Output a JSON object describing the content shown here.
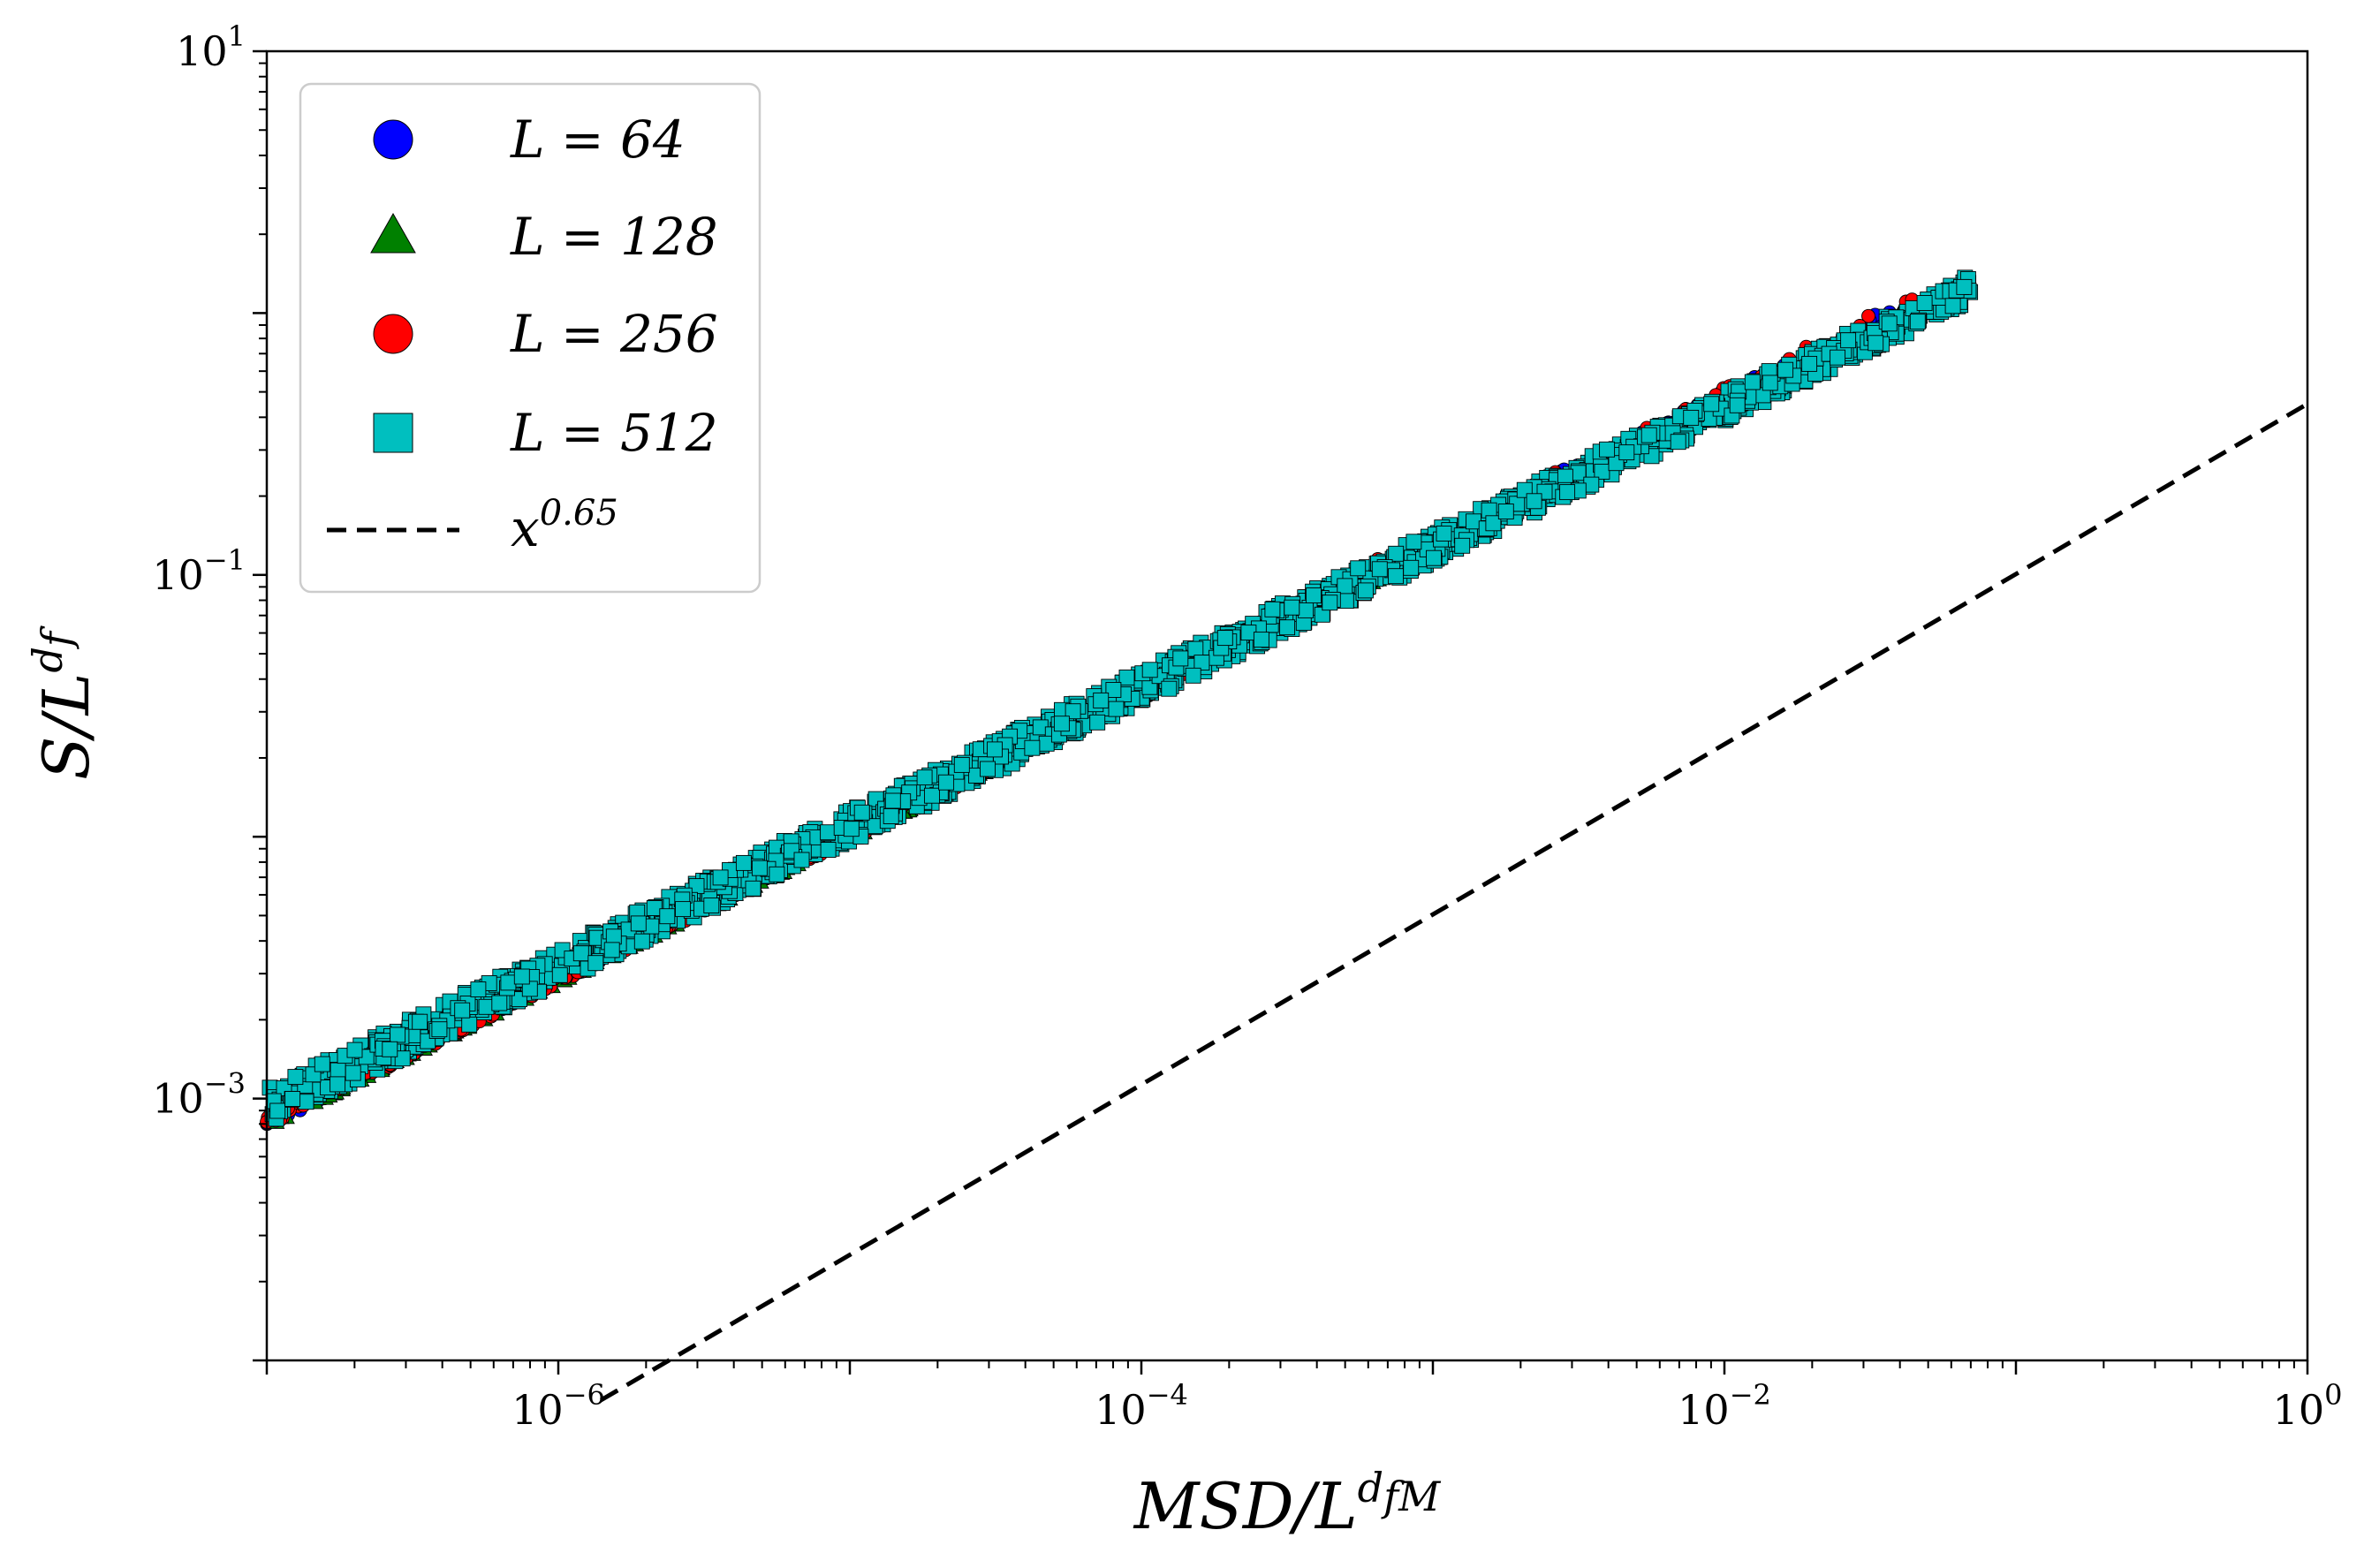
{
  "chart_data": {
    "type": "scatter",
    "x_scale": "log",
    "y_scale": "log",
    "xlim": [
      1e-07,
      1
    ],
    "ylim": [
      0.0001,
      10
    ],
    "xlabel": "MSD/L^{d_fM}",
    "ylabel": "S/L^{d_f}",
    "xlabel_parts": {
      "main": "MSD/L",
      "sup": "d",
      "sub": "fM"
    },
    "ylabel_parts": {
      "main": "S/L",
      "sup": "d",
      "sub": "f"
    },
    "x_ticks": [
      {
        "base": "10",
        "exp": "−6",
        "value": 1e-06
      },
      {
        "base": "10",
        "exp": "−4",
        "value": 0.0001
      },
      {
        "base": "10",
        "exp": "−2",
        "value": 0.01
      },
      {
        "base": "10",
        "exp": "0",
        "value": 1
      }
    ],
    "y_ticks": [
      {
        "base": "10",
        "exp": "1",
        "value": 10
      },
      {
        "base": "10",
        "exp": "−1",
        "value": 0.1
      },
      {
        "base": "10",
        "exp": "−3",
        "value": 0.001
      }
    ],
    "legend_position": "upper-left",
    "series": [
      {
        "name": "L = 64",
        "label_main": "L = 64",
        "marker": "circle",
        "color": "#0000ff",
        "band": {
          "x_range": [
            1e-07,
            0.04
          ],
          "y_at_xmin": [
            0.00078,
            0.0009
          ],
          "y_at_xmax": [
            0.98,
            1.1
          ],
          "exponent": 0.6
        }
      },
      {
        "name": "L = 128",
        "label_main": "L = 128",
        "marker": "triangle",
        "color": "#008000",
        "band": {
          "x_range": [
            1e-07,
            0.045
          ],
          "y_at_xmin": [
            0.00078,
            0.0009
          ],
          "y_at_xmax": [
            0.98,
            1.12
          ],
          "exponent": 0.6
        }
      },
      {
        "name": "L = 256",
        "label_main": "L = 256",
        "marker": "circle",
        "color": "#ff0000",
        "band": {
          "x_range": [
            1e-07,
            0.045
          ],
          "y_at_xmin": [
            0.00078,
            0.0009
          ],
          "y_at_xmax": [
            0.98,
            1.2
          ],
          "exponent": 0.6
        }
      },
      {
        "name": "L = 512",
        "label_main": "L = 512",
        "marker": "square",
        "color": "#00bfbf",
        "band": {
          "x_range": [
            1e-07,
            0.07
          ],
          "y_at_xmin": [
            0.0008,
            0.0011
          ],
          "y_at_xmax": [
            1.1,
            1.4
          ],
          "exponent": 0.6
        }
      }
    ],
    "reference_line": {
      "name": "x^0.65",
      "label_main": "x",
      "label_sup": "0.65",
      "style": "dashed",
      "color": "#000000",
      "exponent": 0.65,
      "coefficient": 0.45,
      "x_range": [
        1.4e-06,
        1
      ]
    },
    "colors": {
      "marker_edge": "#000000",
      "legend_frame": "#cccccc",
      "axis": "#000000"
    }
  }
}
